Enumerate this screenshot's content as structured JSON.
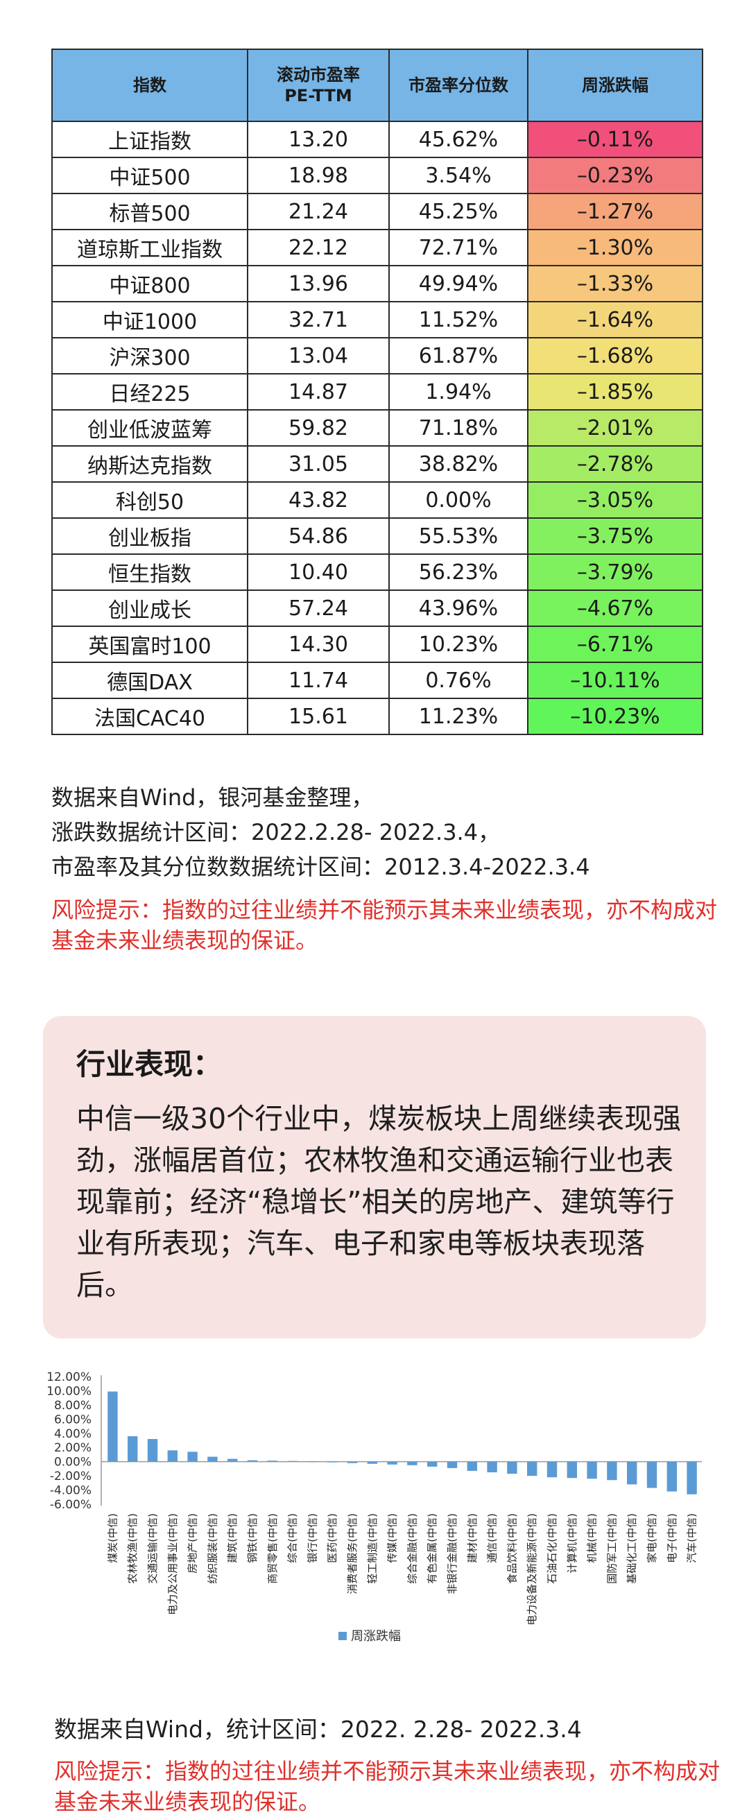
{
  "index_table": {
    "headers": [
      "指数",
      "滚动市盈率\nPE-TTM",
      "市盈率分位数",
      "周涨跌幅"
    ],
    "rows": [
      {
        "name": "上证指数",
        "pe": "13.20",
        "pct": "45.62%",
        "chg": "–0.11%",
        "color": "#f0507a"
      },
      {
        "name": "中证500",
        "pe": "18.98",
        "pct": "3.54%",
        "chg": "–0.23%",
        "color": "#f27b7e"
      },
      {
        "name": "标普500",
        "pe": "21.24",
        "pct": "45.25%",
        "chg": "–1.27%",
        "color": "#f6a47a"
      },
      {
        "name": "道琼斯工业指数",
        "pe": "22.12",
        "pct": "72.71%",
        "chg": "–1.30%",
        "color": "#f7ba7b"
      },
      {
        "name": "中证800",
        "pe": "13.96",
        "pct": "49.94%",
        "chg": "–1.33%",
        "color": "#f6c77c"
      },
      {
        "name": "中证1000",
        "pe": "32.71",
        "pct": "11.52%",
        "chg": "–1.64%",
        "color": "#f4d67a"
      },
      {
        "name": "沪深300",
        "pe": "13.04",
        "pct": "61.87%",
        "chg": "–1.68%",
        "color": "#f2df78"
      },
      {
        "name": "日经225",
        "pe": "14.87",
        "pct": "1.94%",
        "chg": "–1.85%",
        "color": "#e8e573"
      },
      {
        "name": "创业低波蓝筹",
        "pe": "59.82",
        "pct": "71.18%",
        "chg": "–2.01%",
        "color": "#b8ea67"
      },
      {
        "name": "纳斯达克指数",
        "pe": "31.05",
        "pct": "38.82%",
        "chg": "–2.78%",
        "color": "#a4ec64"
      },
      {
        "name": "科创50",
        "pe": "43.82",
        "pct": "0.00%",
        "chg": "–3.05%",
        "color": "#95ee62"
      },
      {
        "name": "创业板指",
        "pe": "54.86",
        "pct": "55.53%",
        "chg": "–3.75%",
        "color": "#85f05f"
      },
      {
        "name": "恒生指数",
        "pe": "10.40",
        "pct": "56.23%",
        "chg": "–3.79%",
        "color": "#7ff15e"
      },
      {
        "name": "创业成长",
        "pe": "57.24",
        "pct": "43.96%",
        "chg": "–4.67%",
        "color": "#78f25d"
      },
      {
        "name": "英国富时100",
        "pe": "14.30",
        "pct": "10.23%",
        "chg": "–6.71%",
        "color": "#6ef35b"
      },
      {
        "name": "德国DAX",
        "pe": "11.74",
        "pct": "0.76%",
        "chg": "–10.11%",
        "color": "#66f45a"
      },
      {
        "name": "法国CAC40",
        "pe": "15.61",
        "pct": "11.23%",
        "chg": "–10.23%",
        "color": "#60f559"
      }
    ]
  },
  "notes1": {
    "line1": "数据来自Wind，银河基金整理，",
    "line2": "涨跌数据统计区间：2022.2.28- 2022.3.4，",
    "line3": "市盈率及其分位数数据统计区间：2012.3.4-2022.3.4",
    "risk": "风险提示：指数的过往业绩并不能预示其未来业绩表现，亦不构成对基金未来业绩表现的保证。"
  },
  "industry": {
    "title": "行业表现：",
    "body": "中信一级30个行业中，煤炭板块上周继续表现强劲，涨幅居首位；农林牧渔和交通运输行业也表现靠前；经济“稳增长”相关的房地产、建筑等行业有所表现；汽车、电子和家电等板块表现落后。"
  },
  "chart_data": {
    "type": "bar",
    "series": [
      {
        "name": "周涨跌幅",
        "color": "#5b9bd5"
      }
    ],
    "categories": [
      "煤炭(中信)",
      "农林牧渔(中信)",
      "交通运输(中信)",
      "电力及公用事业(中信)",
      "房地产(中信)",
      "纺织服装(中信)",
      "建筑(中信)",
      "钢铁(中信)",
      "商贸零售(中信)",
      "综合(中信)",
      "银行(中信)",
      "医药(中信)",
      "消费者服务(中信)",
      "轻工制造(中信)",
      "传媒(中信)",
      "综合金融(中信)",
      "有色金属(中信)",
      "非银行金融(中信)",
      "建材(中信)",
      "通信(中信)",
      "食品饮料(中信)",
      "电力设备及新能源(中信)",
      "石油石化(中信)",
      "计算机(中信)",
      "机械(中信)",
      "国防军工(中信)",
      "基础化工(中信)",
      "家电(中信)",
      "电子(中信)",
      "汽车(中信)"
    ],
    "values": [
      9.9,
      3.6,
      3.2,
      1.6,
      1.4,
      0.7,
      0.4,
      0.2,
      0.15,
      0.1,
      0.05,
      -0.05,
      -0.2,
      -0.3,
      -0.4,
      -0.5,
      -0.7,
      -0.9,
      -1.3,
      -1.5,
      -1.7,
      -2.0,
      -2.2,
      -2.3,
      -2.4,
      -2.6,
      -3.2,
      -3.7,
      -4.2,
      -4.6
    ],
    "yticks": [
      "12.00%",
      "10.00%",
      "8.00%",
      "6.00%",
      "4.00%",
      "2.00%",
      "0.00%",
      "-2.00%",
      "-4.00%",
      "-6.00%"
    ],
    "ylim": [
      -6,
      12
    ],
    "legend": "bottom-center"
  },
  "notes2": {
    "line1": "数据来自Wind，统计区间：2022. 2.28- 2022.3.4",
    "risk": "风险提示：指数的过往业绩并不能预示其未来业绩表现，亦不构成对基金未来业绩表现的保证。"
  }
}
